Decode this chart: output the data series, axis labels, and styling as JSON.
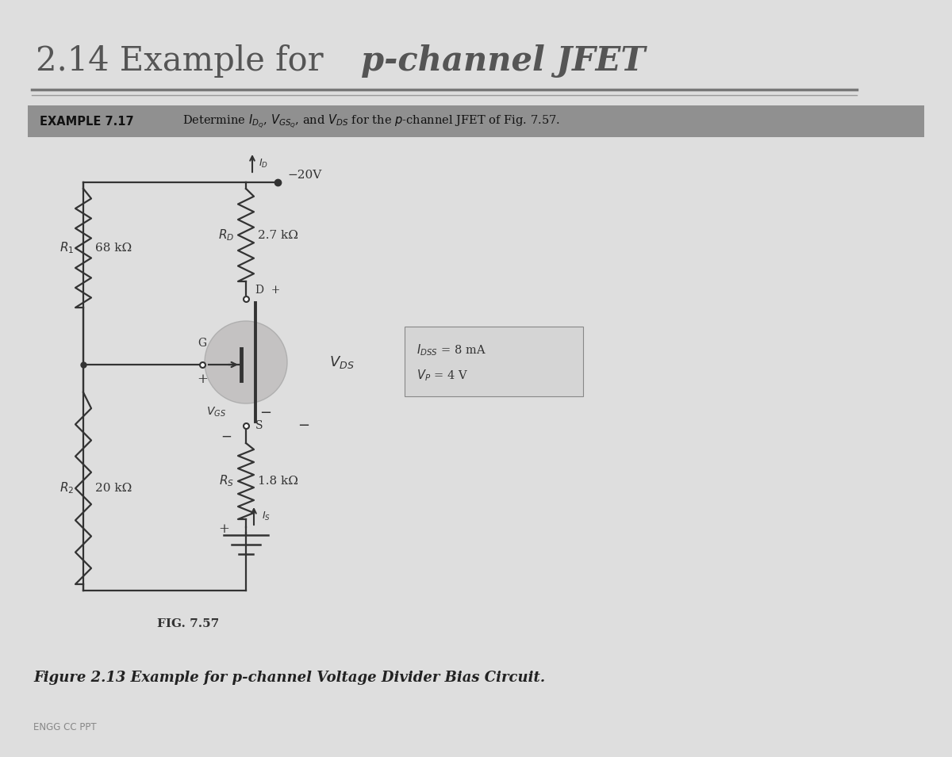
{
  "title_regular": "2.14 Example for ",
  "title_italic": "p-channel JFET",
  "example_label": "EXAMPLE 7.17",
  "example_text": "Determine $I_{D_Q}$, $V_{GS_Q}$, and $V_{DS}$ for the $p$-channel JFET of Fig. 7.57.",
  "fig_label": "FIG. 7.57",
  "figure_caption": "Figure 2.13 Example for p-channel Voltage Divider Bias Circuit.",
  "footer_label": "ENGG CC PPT",
  "bg_color": "#c8c8c8",
  "page_color": "#dedede",
  "header_bar_color": "#909090",
  "circuit_color": "#333333",
  "text_color": "#444444",
  "title_color": "#555555",
  "R1_value": "68 kΩ",
  "R2_value": "20 kΩ",
  "RD_value": "2.7 kΩ",
  "RS_value": "1.8 kΩ",
  "VDD": "−20V",
  "IDSS_text": "$I_{DSS}$ = 8 mA",
  "VP_text": "$V_P$ = 4 V"
}
